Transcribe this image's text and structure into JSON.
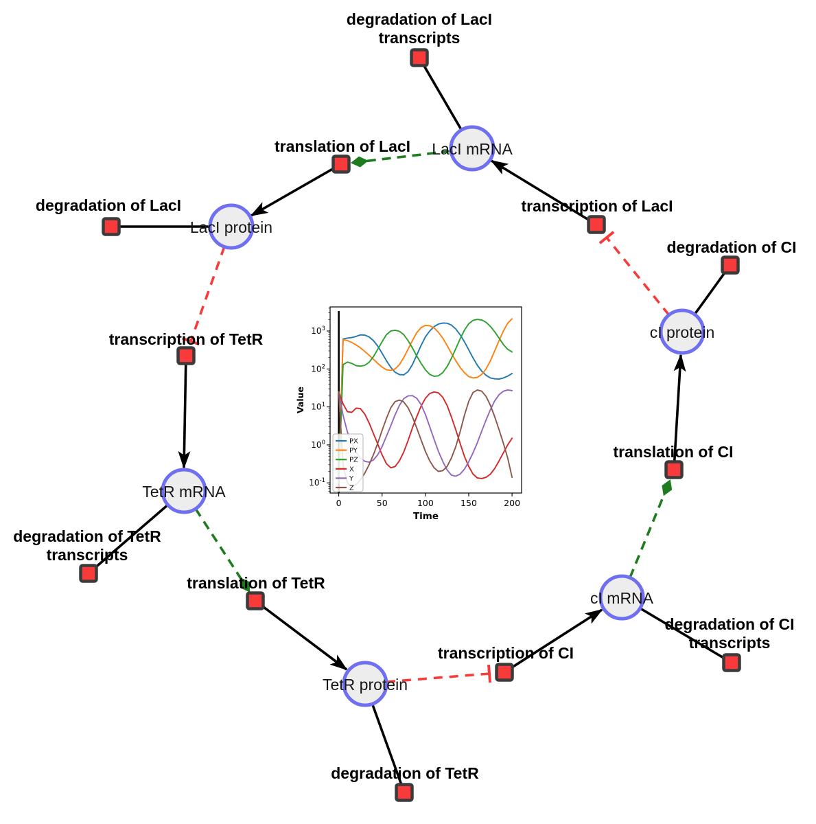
{
  "palette": {
    "species_fill": "#ededed",
    "species_border": "#6f6ff2",
    "reaction_fill": "#f93a3a",
    "reaction_border": "#3b3b3b",
    "edge_black": "#000000",
    "activation_green": "#1e7b1e",
    "inhibition_red": "#f93a3a"
  },
  "species": {
    "lacl_mrna": {
      "label": "LacI mRNA"
    },
    "lacl_protein": {
      "label": "LacI protein"
    },
    "tetr_mrna": {
      "label": "TetR mRNA"
    },
    "tetr_protein": {
      "label": "TetR protein"
    },
    "ci_mrna": {
      "label": "cI mRNA"
    },
    "ci_protein": {
      "label": "cI protein"
    }
  },
  "reactions": {
    "deg_lacl_transcripts": {
      "line1": "degradation of LacI",
      "line2": "transcripts"
    },
    "translation_lacl": {
      "label": "translation of LacI"
    },
    "deg_lacl": {
      "label": "degradation of LacI"
    },
    "transcription_lacl": {
      "label": "transcription of LacI"
    },
    "deg_ci": {
      "label": "degradation of CI"
    },
    "transcription_tetr": {
      "label": "transcription of TetR"
    },
    "deg_tetr_transcripts": {
      "line1": "degradation of TetR",
      "line2": "transcripts"
    },
    "translation_tetr": {
      "label": "translation of TetR"
    },
    "deg_tetr": {
      "label": "degradation of TetR"
    },
    "transcription_ci": {
      "label": "transcription of CI"
    },
    "deg_ci_transcripts": {
      "line1": "degradation of CI",
      "line2": "transcripts"
    },
    "translation_ci": {
      "label": "translation of CI"
    }
  },
  "chart_data": {
    "type": "line",
    "title": "",
    "xlabel": "Time",
    "ylabel": "Value",
    "yscale": "log",
    "grid": false,
    "legend_position": "lower left",
    "xlim": [
      -10,
      211
    ],
    "ylim_log": [
      0.054,
      4300
    ],
    "x_ticks": [
      0,
      50,
      100,
      150,
      200
    ],
    "y_ticks_exp": [
      -1,
      0,
      1,
      2,
      3
    ],
    "vline": {
      "x": 0,
      "color": "#000000"
    },
    "x": [
      0,
      5,
      10,
      15,
      20,
      25,
      30,
      35,
      40,
      45,
      50,
      55,
      60,
      65,
      70,
      75,
      80,
      85,
      90,
      95,
      100,
      105,
      110,
      115,
      120,
      125,
      130,
      135,
      140,
      145,
      150,
      155,
      160,
      165,
      170,
      175,
      180,
      185,
      190,
      195,
      200
    ],
    "series": [
      {
        "name": "PX",
        "color": "#1f77b4",
        "values": [
          0.1,
          620,
          650,
          670,
          720,
          790,
          780,
          700,
          560,
          400,
          260,
          165,
          110,
          82,
          71,
          70,
          85,
          130,
          230,
          420,
          700,
          1000,
          1300,
          1520,
          1620,
          1600,
          1430,
          1130,
          800,
          520,
          320,
          195,
          125,
          88,
          68,
          58,
          55,
          54,
          58,
          65,
          76
        ]
      },
      {
        "name": "PY",
        "color": "#ff7f0e",
        "values": [
          0.1,
          600,
          560,
          500,
          430,
          360,
          290,
          230,
          180,
          140,
          112,
          95,
          92,
          100,
          130,
          200,
          330,
          560,
          900,
          1230,
          1400,
          1380,
          1200,
          930,
          650,
          420,
          260,
          165,
          110,
          80,
          63,
          58,
          60,
          72,
          100,
          165,
          300,
          560,
          1000,
          1600,
          2100
        ]
      },
      {
        "name": "PZ",
        "color": "#2ca02c",
        "values": [
          0.1,
          130,
          152,
          140,
          122,
          118,
          125,
          150,
          210,
          330,
          520,
          800,
          1000,
          1050,
          980,
          800,
          560,
          360,
          220,
          140,
          95,
          72,
          64,
          66,
          80,
          115,
          190,
          340,
          620,
          1050,
          1550,
          1900,
          2020,
          1950,
          1700,
          1320,
          950,
          650,
          440,
          330,
          280
        ]
      },
      {
        "name": "X",
        "color": "#d62728",
        "values": [
          25,
          12,
          7.5,
          7.2,
          9.3,
          9.0,
          6.5,
          3.8,
          2.0,
          1.05,
          0.55,
          0.32,
          0.25,
          0.27,
          0.38,
          0.65,
          1.3,
          2.8,
          5.5,
          10.5,
          17,
          22.5,
          24.8,
          23.5,
          18,
          11,
          5.5,
          2.5,
          1.1,
          0.5,
          0.27,
          0.17,
          0.135,
          0.13,
          0.14,
          0.17,
          0.24,
          0.38,
          0.62,
          1.0,
          1.5
        ]
      },
      {
        "name": "Y",
        "color": "#9467bd",
        "values": [
          25,
          6,
          2.2,
          1.1,
          0.65,
          0.45,
          0.37,
          0.35,
          0.4,
          0.55,
          0.9,
          1.7,
          3.2,
          6.2,
          11,
          16.5,
          19.5,
          19.8,
          17,
          11.5,
          6.3,
          3.0,
          1.4,
          0.68,
          0.37,
          0.22,
          0.16,
          0.15,
          0.17,
          0.23,
          0.36,
          0.62,
          1.15,
          2.3,
          4.5,
          8.5,
          14.5,
          21,
          26,
          28,
          27
        ]
      },
      {
        "name": "Z",
        "color": "#8c564b",
        "values": [
          25,
          0.28,
          0.1,
          0.08,
          0.09,
          0.12,
          0.18,
          0.3,
          0.55,
          1.1,
          2.4,
          5.0,
          9.5,
          13.8,
          15.2,
          13.5,
          9.5,
          5.5,
          2.8,
          1.35,
          0.67,
          0.38,
          0.25,
          0.2,
          0.21,
          0.27,
          0.45,
          0.9,
          2.2,
          6,
          14,
          24,
          28,
          26,
          19,
          11,
          5.5,
          2.5,
          1.1,
          0.45,
          0.14
        ]
      }
    ]
  }
}
